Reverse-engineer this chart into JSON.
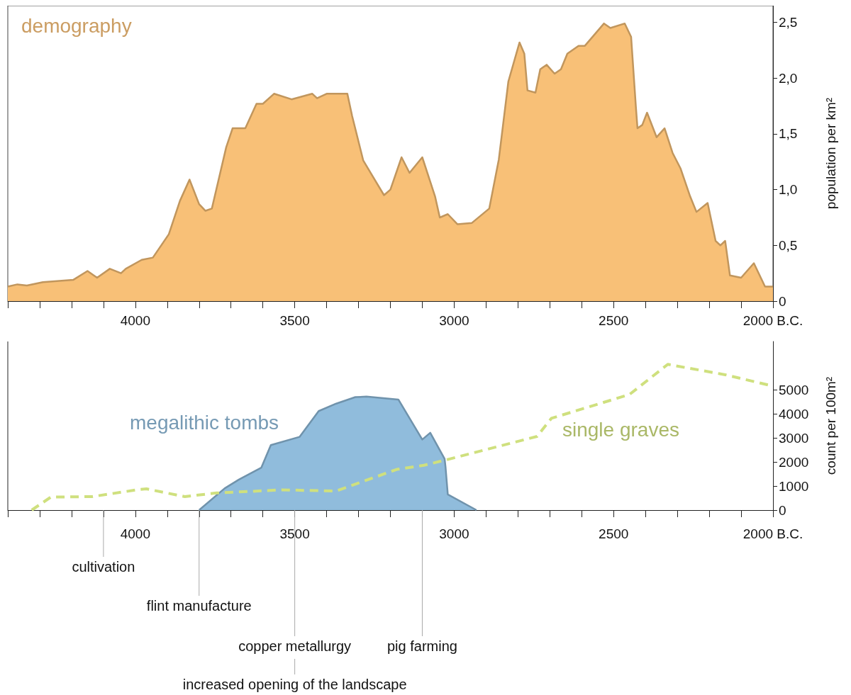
{
  "chart_data": [
    {
      "type": "area",
      "xlim": [
        4400,
        2000
      ],
      "ylim": [
        0,
        2.65
      ],
      "ylabel": "population per km²",
      "xticks": [
        {
          "value": 4400,
          "label": null
        },
        {
          "value": 4300,
          "label": null
        },
        {
          "value": 4200,
          "label": null
        },
        {
          "value": 4100,
          "label": null
        },
        {
          "value": 4000,
          "label": "4000"
        },
        {
          "value": 3900,
          "label": null
        },
        {
          "value": 3800,
          "label": null
        },
        {
          "value": 3700,
          "label": null
        },
        {
          "value": 3600,
          "label": null
        },
        {
          "value": 3500,
          "label": "3500"
        },
        {
          "value": 3400,
          "label": null
        },
        {
          "value": 3300,
          "label": null
        },
        {
          "value": 3200,
          "label": null
        },
        {
          "value": 3100,
          "label": null
        },
        {
          "value": 3000,
          "label": "3000"
        },
        {
          "value": 2900,
          "label": null
        },
        {
          "value": 2800,
          "label": null
        },
        {
          "value": 2700,
          "label": null
        },
        {
          "value": 2600,
          "label": null
        },
        {
          "value": 2500,
          "label": "2500"
        },
        {
          "value": 2400,
          "label": null
        },
        {
          "value": 2300,
          "label": null
        },
        {
          "value": 2200,
          "label": null
        },
        {
          "value": 2100,
          "label": null
        },
        {
          "value": 2000,
          "label": "2000 B.C."
        }
      ],
      "yticks": [
        0,
        {
          "value": 0.5,
          "label": "0,5"
        },
        {
          "value": 1,
          "label": "1,0"
        },
        {
          "value": 1.5,
          "label": "1,5"
        },
        {
          "value": 2,
          "label": "2,0"
        },
        {
          "value": 2.5,
          "label": "2,5"
        }
      ],
      "series": [
        {
          "name": "demography",
          "color": "#f8c077",
          "x": [
            4400,
            4370,
            4340,
            4290,
            4195,
            4150,
            4120,
            4080,
            4045,
            4030,
            3980,
            3945,
            3895,
            3860,
            3830,
            3800,
            3780,
            3760,
            3715,
            3695,
            3655,
            3620,
            3600,
            3565,
            3510,
            3445,
            3430,
            3400,
            3335,
            3320,
            3285,
            3220,
            3200,
            3165,
            3140,
            3100,
            3060,
            3045,
            3020,
            2990,
            2945,
            2890,
            2860,
            2830,
            2795,
            2780,
            2770,
            2745,
            2730,
            2710,
            2685,
            2665,
            2645,
            2610,
            2590,
            2530,
            2510,
            2465,
            2445,
            2430,
            2425,
            2410,
            2395,
            2365,
            2340,
            2315,
            2290,
            2260,
            2240,
            2205,
            2180,
            2165,
            2150,
            2135,
            2100,
            2060,
            2025,
            2000
          ],
          "values": [
            0.13,
            0.15,
            0.14,
            0.17,
            0.19,
            0.27,
            0.21,
            0.29,
            0.25,
            0.29,
            0.37,
            0.39,
            0.6,
            0.9,
            1.09,
            0.87,
            0.81,
            0.83,
            1.38,
            1.55,
            1.55,
            1.77,
            1.77,
            1.86,
            1.81,
            1.86,
            1.82,
            1.86,
            1.86,
            1.66,
            1.26,
            0.95,
            1.0,
            1.29,
            1.15,
            1.29,
            0.94,
            0.75,
            0.78,
            0.69,
            0.7,
            0.83,
            1.27,
            1.97,
            2.32,
            2.22,
            1.89,
            1.87,
            2.08,
            2.12,
            2.04,
            2.08,
            2.22,
            2.29,
            2.29,
            2.49,
            2.45,
            2.49,
            2.37,
            1.74,
            1.55,
            1.58,
            1.69,
            1.47,
            1.55,
            1.33,
            1.19,
            0.94,
            0.8,
            0.88,
            0.54,
            0.5,
            0.54,
            0.23,
            0.21,
            0.34,
            0.13,
            0.13
          ]
        }
      ]
    },
    {
      "type": "area",
      "xlim": [
        4400,
        2000
      ],
      "ylim": [
        0,
        7000
      ],
      "ylabel": "count per 100m²",
      "xticks": [
        {
          "value": 4400,
          "label": null
        },
        {
          "value": 4300,
          "label": null
        },
        {
          "value": 4200,
          "label": null
        },
        {
          "value": 4100,
          "label": null
        },
        {
          "value": 4000,
          "label": "4000"
        },
        {
          "value": 3900,
          "label": null
        },
        {
          "value": 3800,
          "label": null
        },
        {
          "value": 3700,
          "label": null
        },
        {
          "value": 3600,
          "label": null
        },
        {
          "value": 3500,
          "label": "3500"
        },
        {
          "value": 3400,
          "label": null
        },
        {
          "value": 3300,
          "label": null
        },
        {
          "value": 3200,
          "label": null
        },
        {
          "value": 3100,
          "label": null
        },
        {
          "value": 3000,
          "label": "3000"
        },
        {
          "value": 2900,
          "label": null
        },
        {
          "value": 2800,
          "label": null
        },
        {
          "value": 2700,
          "label": null
        },
        {
          "value": 2600,
          "label": null
        },
        {
          "value": 2500,
          "label": "2500"
        },
        {
          "value": 2400,
          "label": null
        },
        {
          "value": 2300,
          "label": null
        },
        {
          "value": 2200,
          "label": null
        },
        {
          "value": 2100,
          "label": null
        },
        {
          "value": 2000,
          "label": "2000 B.C."
        }
      ],
      "yticks": [
        0,
        1000,
        2000,
        3000,
        4000,
        5000
      ],
      "series": [
        {
          "name": "megalithic tombs",
          "color": "#90bcdc",
          "x": [
            3800,
            3720,
            3675,
            3605,
            3575,
            3485,
            3425,
            3370,
            3310,
            3275,
            3175,
            3100,
            3075,
            3030,
            3027,
            3020,
            2930
          ],
          "values": [
            0,
            900,
            1270,
            1760,
            2700,
            3040,
            4110,
            4420,
            4690,
            4710,
            4590,
            2930,
            3210,
            2130,
            1780,
            650,
            0
          ]
        },
        {
          "name": "single graves",
          "type": "line",
          "line_style": "dashed",
          "color": "#cfe07e",
          "x": [
            4325,
            4265,
            4135,
            3990,
            3965,
            3845,
            3745,
            3540,
            3370,
            3180,
            3095,
            3030,
            2740,
            2695,
            2450,
            2330,
            2150,
            2000
          ],
          "values": [
            0,
            540,
            560,
            850,
            880,
            560,
            710,
            840,
            790,
            1690,
            1860,
            2070,
            3060,
            3810,
            4800,
            6050,
            5620,
            5150
          ]
        }
      ],
      "ref_lines": [
        {
          "axis": "x",
          "value": 4100,
          "label": "cultivation"
        },
        {
          "axis": "x",
          "value": 3800,
          "label": "flint manufacture"
        },
        {
          "axis": "x",
          "value": 3500,
          "label": "copper metallurgy"
        },
        {
          "axis": "x",
          "value": 3100,
          "label": "pig farming"
        }
      ],
      "annotations": [
        "increased opening of the landscape"
      ]
    }
  ]
}
